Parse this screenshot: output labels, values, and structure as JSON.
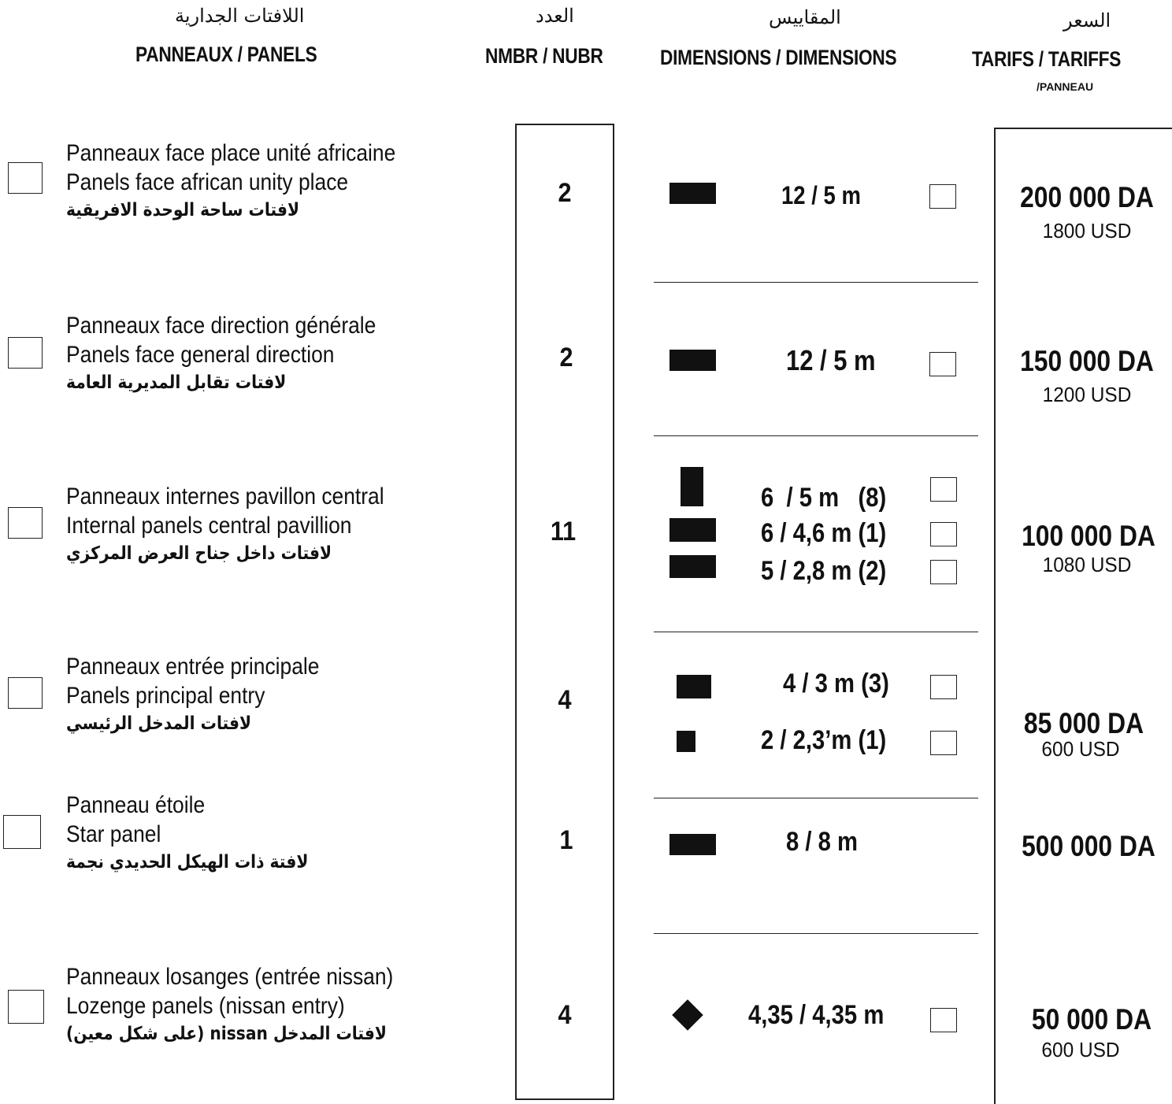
{
  "headers": {
    "panels": {
      "arabic": "اللافتات الجدارية",
      "latin": "PANNEAUX / PANELS"
    },
    "number": {
      "arabic": "العدد",
      "latin": "NMBR / NUBR"
    },
    "dimensions": {
      "arabic": "المقاييس",
      "latin": "DIMENSIONS / DIMENSIONS"
    },
    "tariffs": {
      "arabic": "السعر",
      "latin": "TARIFS / TARIFFS",
      "sub": "/PANNEAU"
    }
  },
  "rows": [
    {
      "fr": "Panneaux face place unité africaine",
      "en": "Panels face african unity place",
      "ar": "لافتات ساحة الوحدة الافريقية",
      "count": "2",
      "dimensions": [
        {
          "text": "12 / 5 m"
        }
      ],
      "price": "200 000 DA",
      "usd": "1800 USD"
    },
    {
      "fr": "Panneaux face direction générale",
      "en": "Panels face general direction",
      "ar": "لافتات تقابل المديرية العامة",
      "count": "2",
      "dimensions": [
        {
          "text": "12 / 5 m"
        }
      ],
      "price": "150 000 DA",
      "usd": "1200 USD"
    },
    {
      "fr": "Panneaux internes pavillon central",
      "en": "Internal panels central pavillion",
      "ar": "لافتات داخل جناح العرض المركزي",
      "count": "11",
      "dimensions": [
        {
          "text": "6  / 5 m   (8)"
        },
        {
          "text": "6 / 4,6 m (1)"
        },
        {
          "text": "5 / 2,8 m (2)"
        }
      ],
      "price": "100 000 DA",
      "usd": "1080 USD"
    },
    {
      "fr": "Panneaux entrée principale",
      "en": "Panels principal entry",
      "ar": "لافتات المدخل الرئيسي",
      "count": "4",
      "dimensions": [
        {
          "text": "4 / 3 m (3)"
        },
        {
          "text": "2 / 2,3’m (1)"
        }
      ],
      "price": "85 000 DA",
      "usd": "600 USD"
    },
    {
      "fr": "Panneau étoile",
      "en": "Star panel",
      "ar": "لافتة ذات الهيكل الحديدي نجمة",
      "count": "1",
      "dimensions": [
        {
          "text": "8 / 8 m"
        }
      ],
      "price": "500 000 DA",
      "usd": ""
    },
    {
      "fr": "Panneaux losanges (entrée nissan)",
      "en": "Lozenge panels (nissan entry)",
      "ar": "لافتات المدخل nissan (على شكل معين)",
      "count": "4",
      "dimensions": [
        {
          "text": "4,35 / 4,35 m"
        }
      ],
      "price": "50 000 DA",
      "usd": "600 USD"
    }
  ]
}
